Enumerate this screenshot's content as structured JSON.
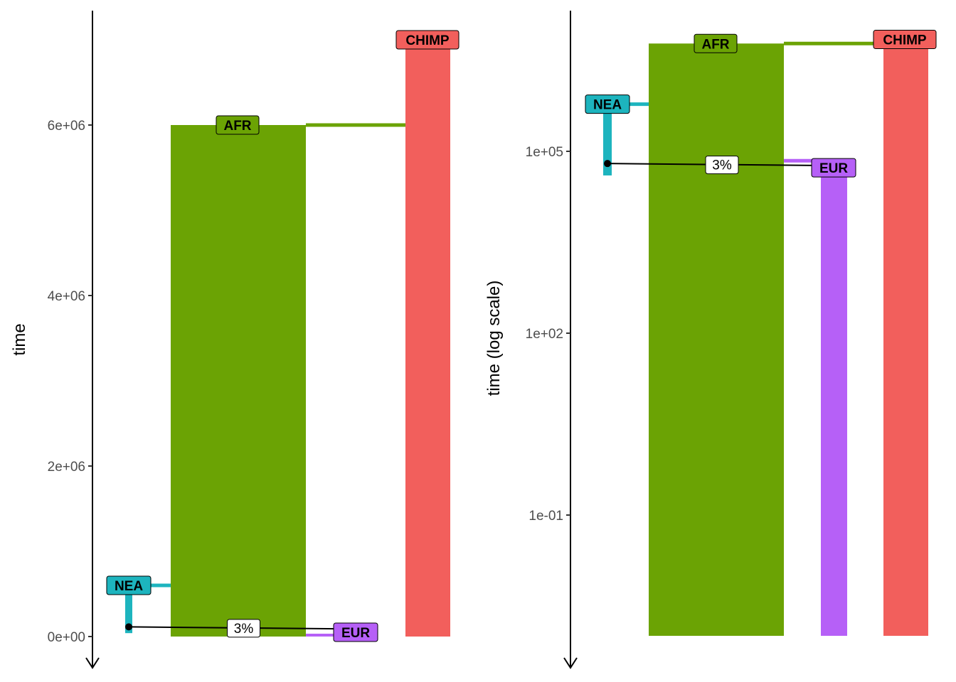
{
  "chart_data": [
    {
      "type": "demographic-tree",
      "ylabel": "time",
      "scale": "linear",
      "ylim": [
        0,
        7300000
      ],
      "y_reversed": false,
      "yticks": [
        {
          "value": 0,
          "label": "0e+00"
        },
        {
          "value": 2000000,
          "label": "2e+06"
        },
        {
          "value": 4000000,
          "label": "4e+06"
        },
        {
          "value": 6000000,
          "label": "6e+06"
        }
      ],
      "grid": false,
      "populations": [
        {
          "name": "CHIMP",
          "color": "#F25F5C",
          "start": 7000000,
          "end": 0
        },
        {
          "name": "AFR",
          "color": "#6BA304",
          "start": 6000000,
          "end": 0,
          "parent": "CHIMP"
        },
        {
          "name": "NEA",
          "color": "#1DB4BE",
          "start": 600000,
          "end": 40000,
          "parent": "AFR"
        },
        {
          "name": "EUR",
          "color": "#B660F7",
          "start": 70000,
          "end": 0,
          "parent": "AFR"
        }
      ],
      "gene_flow": [
        {
          "from": "NEA",
          "to": "EUR",
          "rate_label": "3%",
          "time": 55000
        }
      ]
    },
    {
      "type": "demographic-tree",
      "ylabel": "time (log scale)",
      "scale": "log10",
      "ylim": [
        0.0001,
        10000000
      ],
      "yticks": [
        {
          "value": 0.1,
          "label": "1e-01"
        },
        {
          "value": 100,
          "label": "1e+02"
        },
        {
          "value": 100000,
          "label": "1e+05"
        }
      ],
      "grid": false,
      "populations": [
        {
          "name": "CHIMP",
          "color": "#F25F5C",
          "start": 7000000,
          "end": 0.0001
        },
        {
          "name": "AFR",
          "color": "#6BA304",
          "start": 6000000,
          "end": 0.0001,
          "parent": "CHIMP"
        },
        {
          "name": "NEA",
          "color": "#1DB4BE",
          "start": 600000,
          "end": 40000,
          "parent": "AFR"
        },
        {
          "name": "EUR",
          "color": "#B660F7",
          "start": 70000,
          "end": 0.0001,
          "parent": "AFR"
        }
      ],
      "gene_flow": [
        {
          "from": "NEA",
          "to": "EUR",
          "rate_label": "3%",
          "time": 55000
        }
      ]
    }
  ]
}
